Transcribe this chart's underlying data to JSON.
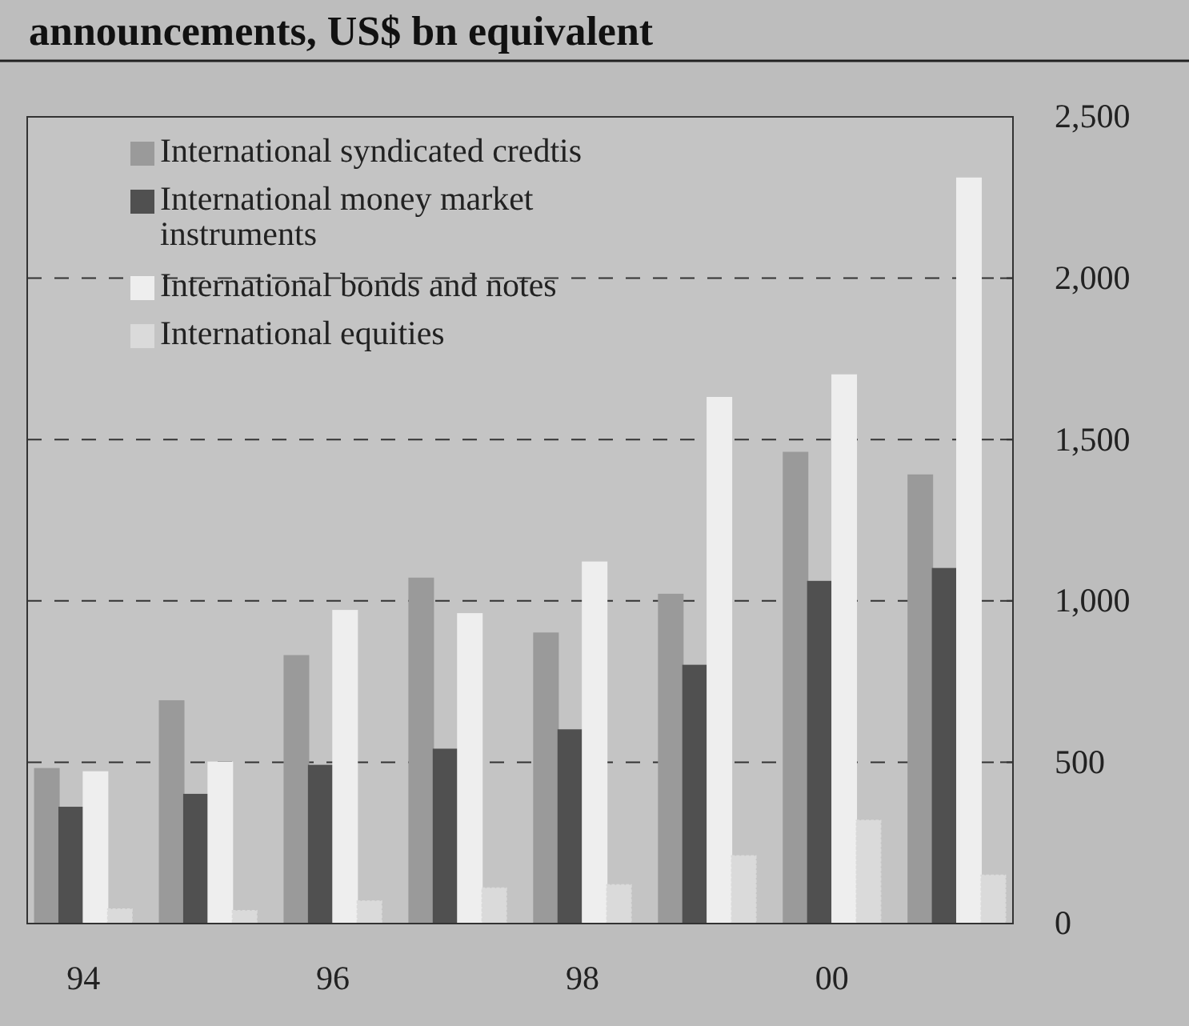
{
  "chart_data": {
    "type": "bar",
    "title": "announcements, US$ bn equivalent",
    "categories": [
      "94",
      null,
      "96",
      null,
      "98",
      null,
      "00",
      null
    ],
    "series": [
      {
        "name": "International syndicated credtis",
        "color": "#9a9a9a",
        "values": [
          480,
          690,
          830,
          1070,
          900,
          1020,
          1460,
          1390
        ]
      },
      {
        "name": "International money market instruments",
        "color": "#505050",
        "values": [
          360,
          400,
          490,
          540,
          600,
          800,
          1060,
          1100
        ]
      },
      {
        "name": "International bonds and notes",
        "color": "#eeeeee",
        "values": [
          470,
          500,
          970,
          960,
          1120,
          1630,
          1700,
          2310
        ]
      },
      {
        "name": "International equities",
        "color": "#dadada",
        "values": [
          45,
          40,
          70,
          110,
          120,
          210,
          320,
          150
        ]
      }
    ],
    "ylim": [
      0,
      2500
    ],
    "yticks": [
      0,
      {
        "value": 500,
        "label": "500"
      },
      {
        "value": 1000,
        "label": "1,000"
      },
      {
        "value": 1500,
        "label": "1,500"
      },
      {
        "value": 2000,
        "label": "2,000"
      },
      {
        "value": 2500,
        "label": "2,500"
      }
    ],
    "grid": "y",
    "legend": "top left"
  }
}
